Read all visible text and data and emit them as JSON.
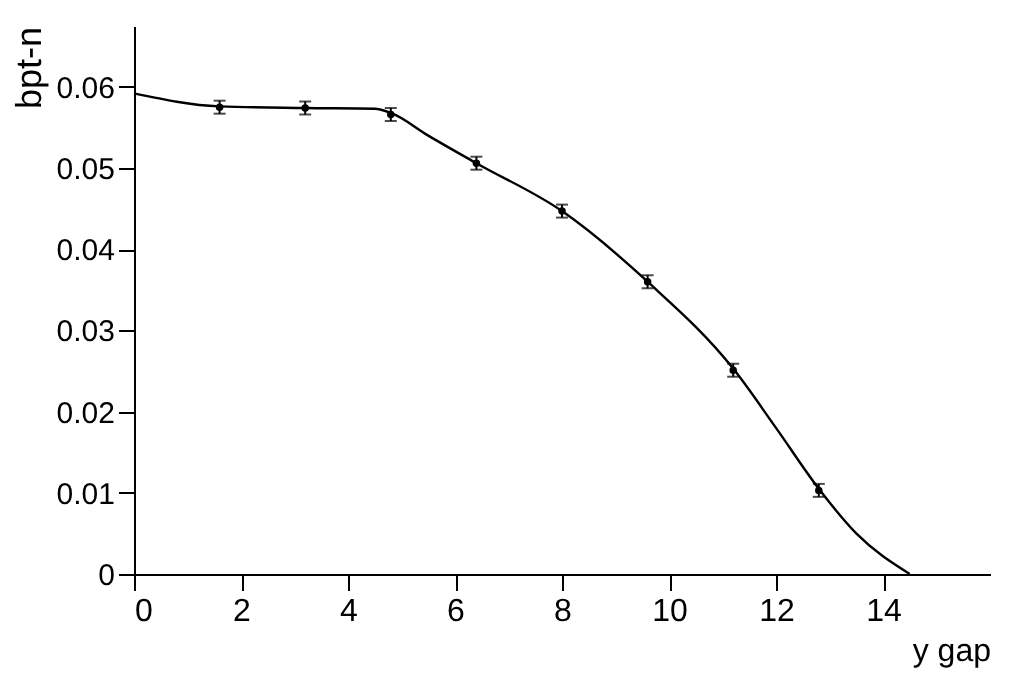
{
  "chart_data": {
    "type": "scatter",
    "xlabel": "y gap",
    "ylabel": "bpt-n",
    "xlim": [
      0,
      16
    ],
    "xticks": [
      0,
      2,
      4,
      6,
      8,
      10,
      12,
      14
    ],
    "ylim": [
      0,
      0.0675
    ],
    "yticks": [
      {
        "value": 0,
        "label": "0"
      },
      0.01,
      0.02,
      0.03,
      0.04,
      0.05,
      0.06
    ],
    "grid": false,
    "series": [
      {
        "color": "#000000",
        "marker": "circle",
        "x": [
          1.6,
          3.2,
          4.8,
          6.4,
          8.0,
          9.6,
          11.2,
          12.8
        ],
        "values": [
          0.0575,
          0.0574,
          0.0566,
          0.0506,
          0.0447,
          0.036,
          0.0251,
          0.0103
        ],
        "errors": [
          0.0008,
          0.0008,
          0.0008,
          0.0008,
          0.0008,
          0.0008,
          0.0008,
          0.0008
        ]
      },
      {
        "type": "line",
        "color": "#000000",
        "line_style": "solid",
        "x": [
          0,
          1.6,
          3.2,
          4.5,
          4.8,
          5.5,
          6.4,
          8.0,
          9.6,
          11.2,
          12.0,
          12.8,
          13.5,
          14.5
        ],
        "values": [
          0.0592,
          0.0576,
          0.0574,
          0.0573,
          0.0568,
          0.054,
          0.0506,
          0.0447,
          0.036,
          0.0253,
          0.018,
          0.0105,
          0.005,
          0.0
        ]
      }
    ]
  }
}
